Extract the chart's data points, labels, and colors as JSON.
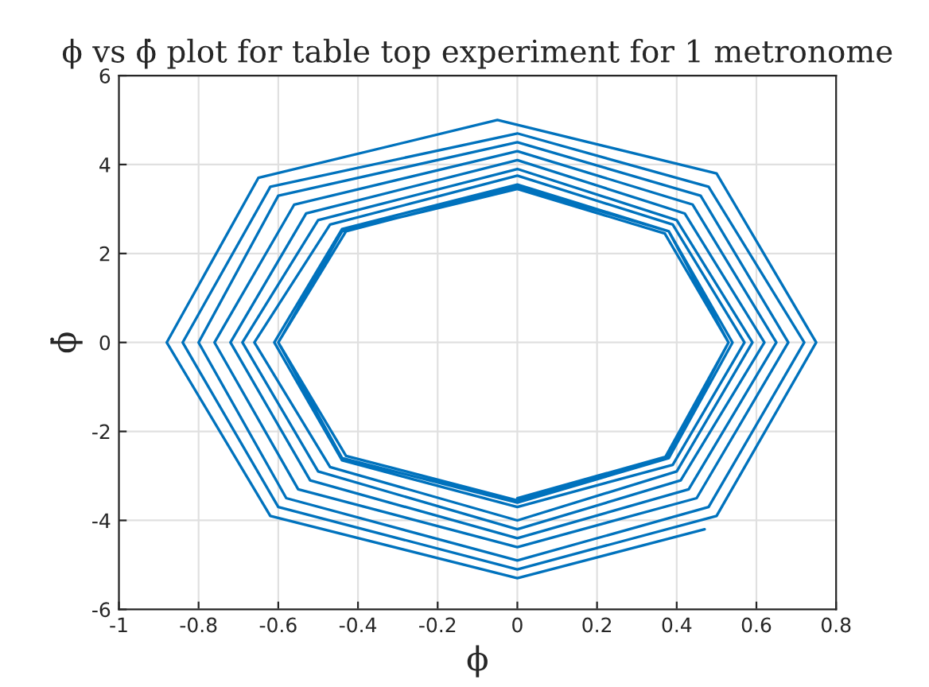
{
  "chart_data": {
    "type": "line",
    "title": "ϕ vs ϕ̇ plot for table top experiment for 1 metronome",
    "xlabel": "ϕ",
    "ylabel": "ϕ̇",
    "series": [
      {
        "color": "#0072bd",
        "x": [
          0.47,
          0.0,
          -0.62,
          -0.88,
          -0.65,
          -0.05,
          0.5,
          0.75,
          0.5,
          0.0,
          -0.6,
          -0.84,
          -0.62,
          0.0,
          0.48,
          0.72,
          0.48,
          0.0,
          -0.58,
          -0.8,
          -0.6,
          0.0,
          0.46,
          0.68,
          0.45,
          0.0,
          -0.55,
          -0.76,
          -0.56,
          0.0,
          0.44,
          0.65,
          0.43,
          0.0,
          -0.52,
          -0.72,
          -0.53,
          0.0,
          0.42,
          0.62,
          0.41,
          0.0,
          -0.5,
          -0.69,
          -0.5,
          0.0,
          0.4,
          0.59,
          0.4,
          0.0,
          -0.47,
          -0.66,
          -0.47,
          0.0,
          0.39,
          0.57,
          0.39,
          0.0,
          -0.44,
          -0.61,
          -0.44,
          0.0,
          0.38,
          0.54,
          0.38,
          0.0,
          -0.44,
          -0.6,
          -0.43,
          0.0,
          0.38,
          0.53,
          0.37,
          0.0,
          -0.43,
          -0.6,
          -0.44,
          0.0,
          0.37,
          0.53,
          0.38,
          0.0
        ],
        "values": [
          -4.2,
          -5.3,
          -3.9,
          0.0,
          3.7,
          5.0,
          3.8,
          0.0,
          -3.9,
          -5.1,
          -3.7,
          0.0,
          3.5,
          4.7,
          3.5,
          0.0,
          -3.7,
          -4.9,
          -3.5,
          0.0,
          3.3,
          4.5,
          3.3,
          0.0,
          -3.5,
          -4.6,
          -3.3,
          0.0,
          3.1,
          4.3,
          3.1,
          0.0,
          -3.3,
          -4.4,
          -3.1,
          0.0,
          2.9,
          4.1,
          2.9,
          0.0,
          -3.1,
          -4.2,
          -2.9,
          0.0,
          2.75,
          3.9,
          2.75,
          0.0,
          -2.9,
          -4.0,
          -2.8,
          0.0,
          2.65,
          3.75,
          2.65,
          0.0,
          -2.75,
          -3.7,
          -2.65,
          0.0,
          2.55,
          3.55,
          2.5,
          0.0,
          -2.6,
          -3.6,
          -2.6,
          0.0,
          2.5,
          3.5,
          2.5,
          0.0,
          -2.6,
          -3.55,
          -2.55,
          0.0,
          2.5,
          3.45,
          2.45,
          0.0,
          -2.55,
          -3.5
        ]
      }
    ],
    "xlim": [
      -1,
      0.8
    ],
    "xticks": [
      -1,
      -0.8,
      -0.6,
      -0.4,
      -0.2,
      0,
      0.2,
      0.4,
      0.6,
      0.8
    ],
    "ylim": [
      -6,
      6
    ],
    "yticks": [
      -6,
      -4,
      -2,
      0,
      2,
      4,
      6
    ],
    "grid": true,
    "legend": false
  }
}
